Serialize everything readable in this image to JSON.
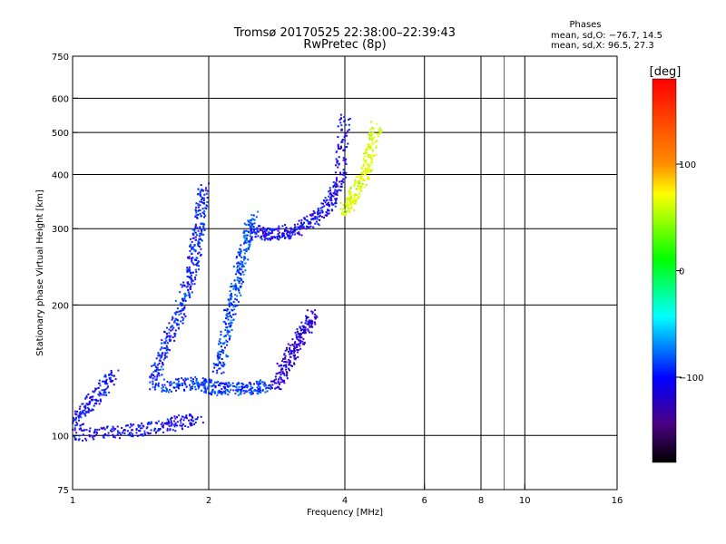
{
  "chart_data": {
    "type": "scatter",
    "title_line1": "Tromsø 20170525 22:38:00–22:39:43",
    "title_line2": "RwPretec (8p)",
    "info_title": "Phases",
    "info_line1": "mean, sd,O: −76.7, 14.5",
    "info_line2": "mean, sd,X:  96.5, 27.3",
    "xlabel": "Frequency [MHz]",
    "ylabel": "Stationary phase Virtual Height [km]",
    "x_scale": "log",
    "y_scale": "log",
    "xlim": [
      1,
      16
    ],
    "ylim": [
      75,
      750
    ],
    "x_ticks": [
      1,
      2,
      4,
      6,
      8,
      10,
      16
    ],
    "x_ticklabels": [
      "1",
      "2",
      "4",
      "6",
      "8",
      "10",
      "16"
    ],
    "x_grid": [
      2,
      4,
      6,
      8,
      10
    ],
    "x_minor": [
      9
    ],
    "y_ticks": [
      75,
      100,
      200,
      300,
      400,
      500,
      600,
      750
    ],
    "y_ticklabels": [
      "75",
      "100",
      "200",
      "300",
      "400",
      "500",
      "600",
      "750"
    ],
    "y_grid": [
      100,
      200,
      300,
      400,
      500,
      600
    ],
    "colorbar": {
      "label": "[deg]",
      "range": [
        -180,
        180
      ],
      "ticks": [
        100,
        0,
        -100
      ],
      "ticklabels": [
        "100",
        "0",
        "−100"
      ],
      "colors": [
        "#ff0000",
        "#ff8000",
        "#ffff00",
        "#00ff00",
        "#00ffff",
        "#0000ff",
        "#4b0082",
        "#000000"
      ]
    },
    "series": [
      {
        "trace": "o-trace-low",
        "phase": -100,
        "x": [
          1.0,
          1.3,
          1.6,
          1.9
        ],
        "y": [
          100,
          102,
          105,
          110
        ]
      },
      {
        "trace": "o-trace-lower-rise",
        "phase": -95,
        "x": [
          1.0,
          1.1,
          1.25
        ],
        "y": [
          105,
          120,
          140
        ]
      },
      {
        "trace": "o-trace-f1",
        "phase": -90,
        "x": [
          1.5,
          1.6,
          1.75,
          1.85,
          1.9,
          1.95
        ],
        "y": [
          130,
          160,
          200,
          250,
          300,
          380
        ]
      },
      {
        "trace": "o-trace-e-horizontal",
        "phase": -85,
        "x": [
          1.6,
          1.9,
          2.1,
          2.4,
          2.7
        ],
        "y": [
          130,
          132,
          128,
          128,
          130
        ]
      },
      {
        "trace": "o-trace-second",
        "phase": -80,
        "x": [
          2.1,
          2.2,
          2.3,
          2.4,
          2.5
        ],
        "y": [
          140,
          180,
          220,
          270,
          320
        ]
      },
      {
        "trace": "o-trace-f2",
        "phase": -100,
        "x": [
          2.5,
          2.8,
          3.2,
          3.6,
          3.9,
          4.0
        ],
        "y": [
          295,
          290,
          300,
          330,
          380,
          550
        ]
      },
      {
        "trace": "o-trace-cluster",
        "phase": -110,
        "x": [
          2.8,
          3.0,
          3.2,
          3.4
        ],
        "y": [
          130,
          150,
          170,
          190
        ]
      },
      {
        "trace": "x-trace",
        "phase": 100,
        "x": [
          4.0,
          4.2,
          4.5,
          4.7
        ],
        "y": [
          330,
          360,
          420,
          520
        ]
      }
    ]
  }
}
